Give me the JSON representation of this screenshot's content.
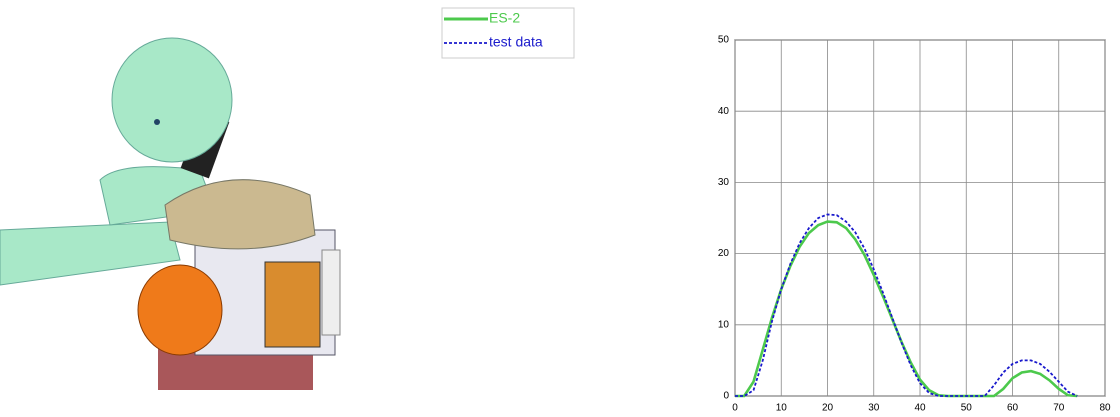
{
  "chart_data": {
    "type": "line",
    "x": [
      0,
      2,
      4,
      6,
      8,
      10,
      12,
      14,
      16,
      18,
      20,
      22,
      24,
      26,
      28,
      30,
      32,
      34,
      36,
      38,
      40,
      42,
      44,
      46,
      48,
      50,
      52,
      54,
      56,
      58,
      60,
      62,
      64,
      66,
      68,
      70,
      72,
      74,
      76,
      78,
      80
    ],
    "series": [
      {
        "name": "ES-2",
        "color": "#4cc94c",
        "dash": false,
        "values": [
          0,
          0,
          2,
          6.5,
          11,
          15,
          18.3,
          21,
          22.9,
          24,
          24.5,
          24.4,
          23.6,
          22,
          19.8,
          17,
          14,
          10.8,
          7.6,
          4.7,
          2.3,
          0.8,
          0.1,
          0,
          0,
          0,
          0,
          0,
          0,
          1,
          2.5,
          3.3,
          3.5,
          3.1,
          2.2,
          1,
          0.1,
          0,
          null,
          null,
          null
        ]
      },
      {
        "name": "test data",
        "color": "#1a1acc",
        "dash": true,
        "values": [
          0,
          0,
          0.8,
          5,
          10.5,
          15,
          18.6,
          21.5,
          23.6,
          25,
          25.5,
          25.4,
          24.5,
          23,
          20.7,
          17.8,
          14.5,
          11,
          7.5,
          4.3,
          1.8,
          0.4,
          0,
          0,
          0,
          0,
          0,
          0,
          1.5,
          3.3,
          4.5,
          5,
          5,
          4.5,
          3.4,
          2,
          0.6,
          0,
          null,
          null,
          null
        ]
      }
    ],
    "xlim": [
      0,
      80
    ],
    "xticks": [
      0,
      10,
      20,
      30,
      40,
      50,
      60,
      70,
      80
    ],
    "ylim": [
      0,
      50
    ],
    "yticks": [
      0,
      10,
      20,
      30,
      40,
      50
    ],
    "grid": true
  }
}
